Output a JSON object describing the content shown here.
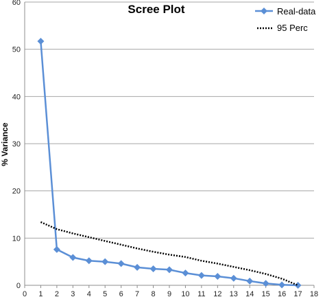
{
  "chart_data": {
    "type": "line",
    "title": "Scree Plot",
    "xlabel": "",
    "ylabel": "% Variance",
    "xlim": [
      0,
      18
    ],
    "ylim": [
      0,
      60
    ],
    "xticks": [
      0,
      1,
      2,
      3,
      4,
      5,
      6,
      7,
      8,
      9,
      10,
      11,
      12,
      13,
      14,
      15,
      16,
      17,
      18
    ],
    "yticks": [
      0,
      10,
      20,
      30,
      40,
      50,
      60
    ],
    "grid": "horizontal",
    "legend_position": "top-right",
    "series": [
      {
        "name": "Real-data",
        "style": "solid-with-diamond-markers",
        "color": "#5b8fd6",
        "x": [
          1,
          2,
          3,
          4,
          5,
          6,
          7,
          8,
          9,
          10,
          11,
          12,
          13,
          14,
          15,
          16,
          17
        ],
        "values": [
          51.7,
          7.6,
          5.9,
          5.2,
          5.0,
          4.6,
          3.8,
          3.5,
          3.3,
          2.6,
          2.1,
          1.9,
          1.5,
          0.9,
          0.4,
          0.1,
          0.0
        ]
      },
      {
        "name": "95 Perc",
        "style": "dotted",
        "color": "#000000",
        "x": [
          1,
          2,
          3,
          4,
          5,
          6,
          7,
          8,
          9,
          10,
          11,
          12,
          13,
          14,
          15,
          16,
          17
        ],
        "values": [
          13.4,
          11.9,
          11.0,
          10.2,
          9.4,
          8.6,
          7.8,
          7.1,
          6.5,
          6.0,
          5.2,
          4.6,
          3.9,
          3.2,
          2.4,
          1.4,
          0.0
        ]
      }
    ]
  }
}
